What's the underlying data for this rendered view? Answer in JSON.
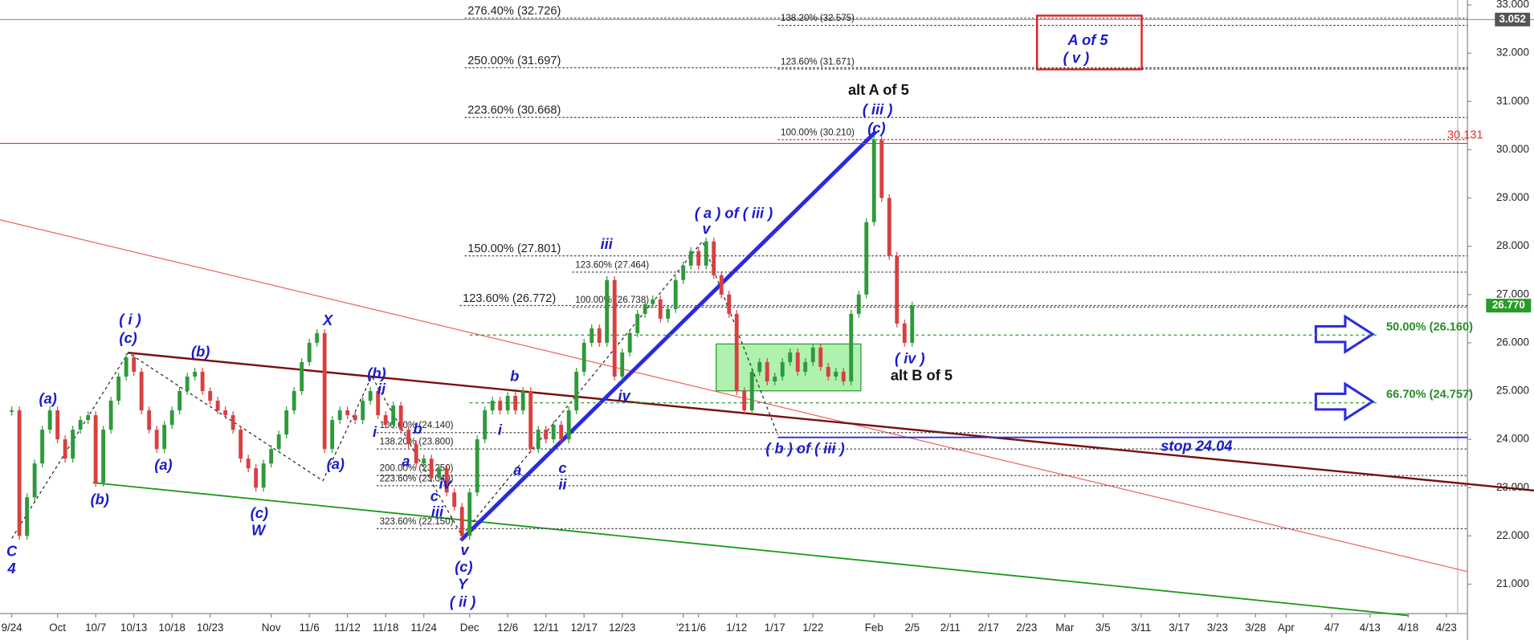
{
  "chart_data": {
    "type": "candlestick",
    "categories": [
      "9/24",
      null,
      null,
      null,
      null,
      null,
      "Oct",
      null,
      null,
      null,
      null,
      "10/7",
      null,
      null,
      null,
      null,
      "10/13",
      null,
      null,
      null,
      null,
      "10/18",
      null,
      null,
      null,
      null,
      "10/23",
      null,
      null,
      null,
      null,
      null,
      null,
      null,
      "Nov",
      null,
      null,
      null,
      null,
      "11/6",
      null,
      null,
      null,
      null,
      "11/12",
      null,
      null,
      null,
      null,
      "11/18",
      null,
      null,
      null,
      null,
      "11/24",
      null,
      null,
      null,
      null,
      null,
      "Dec",
      null,
      null,
      null,
      null,
      "12/6",
      null,
      null,
      null,
      null,
      "12/11",
      null,
      null,
      null,
      null,
      "12/17",
      null,
      null,
      null,
      null,
      "12/23",
      null,
      null,
      null,
      null,
      null,
      null,
      null,
      "'21",
      null,
      "1/6",
      null,
      null,
      null,
      null,
      "1/12",
      null,
      null,
      null,
      null,
      "1/17",
      null,
      null,
      null,
      null,
      "1/22",
      null,
      null,
      null,
      null,
      null,
      null,
      null,
      "Feb",
      null,
      null,
      null,
      null,
      "2/5",
      null,
      null,
      null,
      null,
      "2/11",
      null,
      null,
      null,
      null,
      "2/17",
      null,
      null,
      null,
      null,
      "2/23",
      null,
      null,
      null,
      null,
      "Mar",
      null,
      null,
      null,
      null,
      "3/5",
      null,
      null,
      null,
      null,
      "3/11",
      null,
      null,
      null,
      null,
      "3/17",
      null,
      null,
      null,
      null,
      "3/23",
      null,
      null,
      null,
      null,
      "3/28",
      null,
      null,
      null,
      "Apr",
      null,
      null,
      null,
      null,
      null,
      "4/7",
      null,
      null,
      null,
      null,
      "4/13",
      null,
      null,
      null,
      null,
      "4/18",
      null,
      null,
      null,
      null,
      "4/23",
      null,
      null,
      null
    ],
    "values": [
      24.6,
      22.0,
      22.8,
      23.5,
      24.2,
      24.6,
      24.0,
      23.6,
      24.2,
      24.4,
      24.5,
      23.1,
      24.2,
      24.8,
      25.3,
      25.7,
      25.4,
      24.6,
      24.2,
      23.8,
      24.3,
      24.6,
      25.0,
      25.3,
      25.4,
      25.0,
      24.8,
      24.6,
      24.5,
      24.2,
      23.6,
      23.4,
      23.0,
      23.5,
      23.8,
      24.1,
      24.6,
      25.0,
      25.6,
      26.0,
      26.2,
      23.8,
      24.4,
      24.6,
      24.5,
      24.4,
      24.8,
      25.0,
      24.5,
      24.3,
      24.7,
      24.2,
      23.9,
      23.5,
      23.6,
      23.2,
      23.4,
      22.9,
      22.6,
      22.0,
      22.9,
      24.0,
      24.6,
      24.8,
      24.6,
      24.9,
      24.6,
      25.0,
      23.8,
      24.2,
      24.0,
      24.3,
      24.0,
      24.6,
      25.4,
      26.0,
      26.3,
      26.0,
      27.3,
      25.3,
      25.8,
      26.2,
      26.6,
      26.8,
      26.9,
      26.5,
      26.7,
      27.3,
      27.6,
      27.9,
      27.6,
      28.1,
      27.4,
      27.0,
      26.6,
      25.0,
      24.6,
      25.4,
      25.6,
      25.2,
      25.3,
      25.6,
      25.8,
      25.4,
      25.6,
      25.9,
      25.5,
      25.3,
      25.4,
      25.2,
      26.6,
      27.0,
      28.5,
      30.2,
      29.0,
      27.8,
      26.4,
      26.0,
      26.77,
      null,
      null,
      null,
      null,
      null,
      null,
      null,
      null,
      null,
      null,
      null,
      null,
      null,
      null,
      null,
      null,
      null,
      null,
      null,
      null,
      null,
      null,
      null,
      null,
      null,
      null,
      null,
      null,
      null,
      null,
      null,
      null,
      null,
      null,
      null,
      null,
      null,
      null,
      null,
      null,
      null,
      null,
      null,
      null,
      null,
      null,
      null,
      null,
      null,
      null,
      null,
      null,
      null,
      null,
      null,
      null,
      null,
      null,
      null,
      null,
      null,
      null,
      null,
      null,
      null,
      null,
      null,
      null,
      null,
      null,
      null,
      null,
      null
    ],
    "up_color": "#2e9a3a",
    "down_color": "#d84040",
    "ylim": [
      20.39,
      33.0
    ],
    "yticks": [
      {
        "value": 21,
        "label": "21.000"
      },
      {
        "value": 22,
        "label": "22.000"
      },
      {
        "value": 23,
        "label": "23.000"
      },
      {
        "value": 24,
        "label": "24.000"
      },
      {
        "value": 25,
        "label": "25.000"
      },
      {
        "value": 26,
        "label": "26.000"
      },
      {
        "value": 27,
        "label": "27.000"
      },
      {
        "value": 28,
        "label": "28.000"
      },
      {
        "value": 29,
        "label": "29.000"
      },
      {
        "value": 30,
        "label": "30.000"
      },
      {
        "value": 31,
        "label": "31.000"
      },
      {
        "value": 32,
        "label": "32.000"
      },
      {
        "value": 33,
        "label": "33.000"
      }
    ],
    "levels": [
      {
        "label": "276.40% (32.726)",
        "value": 32.726
      },
      {
        "label": "250.00% (31.697)",
        "value": 31.697
      },
      {
        "label": "223.60% (30.668)",
        "value": 30.668
      },
      {
        "label": "150.00% (27.801)",
        "value": 27.801
      },
      {
        "label": "123.60% (26.772)",
        "value": 26.772
      },
      {
        "label": "100.00% (24.140)",
        "value": 24.14
      },
      {
        "label": "138.20% (23.800)",
        "value": 23.8
      },
      {
        "label": "200.00% (23.250)",
        "value": 23.25
      },
      {
        "label": "223.60% (23.040)",
        "value": 23.04
      },
      {
        "label": "323.60% (22.150)",
        "value": 22.15
      },
      {
        "label": "138.20% (32.575)",
        "value": 32.575
      },
      {
        "label": "123.60% (31.671)",
        "value": 31.671
      },
      {
        "label": "100.00% (30.210)",
        "value": 30.21
      },
      {
        "label": "123.60% (27.464)",
        "value": 27.464
      },
      {
        "label": "100.00% (26.738)",
        "value": 26.738
      }
    ],
    "targets": [
      {
        "label": "50.00% (26.160)",
        "value": 26.16
      },
      {
        "label": "66.70% (24.757)",
        "value": 24.757
      }
    ],
    "stop": {
      "label": "stop 24.04",
      "value": 24.04
    },
    "resistance": {
      "label": "30.131",
      "value": 30.131
    },
    "price_tag": {
      "label": "26.770",
      "value": 26.77
    },
    "top_tag": "3.052",
    "annotations": [
      "( i )",
      "(c)",
      "(a)",
      "(b)",
      "(a)",
      "(b)",
      "(c)",
      "W",
      "X",
      "(a)",
      "(b)",
      "ii",
      "i",
      "b",
      "a",
      "iv",
      "c",
      "iii",
      "v",
      "(c)",
      "Y",
      "( ii )",
      "C",
      "4",
      "i",
      "b",
      "a",
      "c",
      "ii",
      "iii",
      "iv",
      "( a ) of ( iii )",
      "v",
      "alt A of 5",
      "( iii )",
      "(c)",
      "( b ) of ( iii )",
      "( iv )",
      "alt B of 5",
      "A of 5",
      "( v )"
    ]
  }
}
